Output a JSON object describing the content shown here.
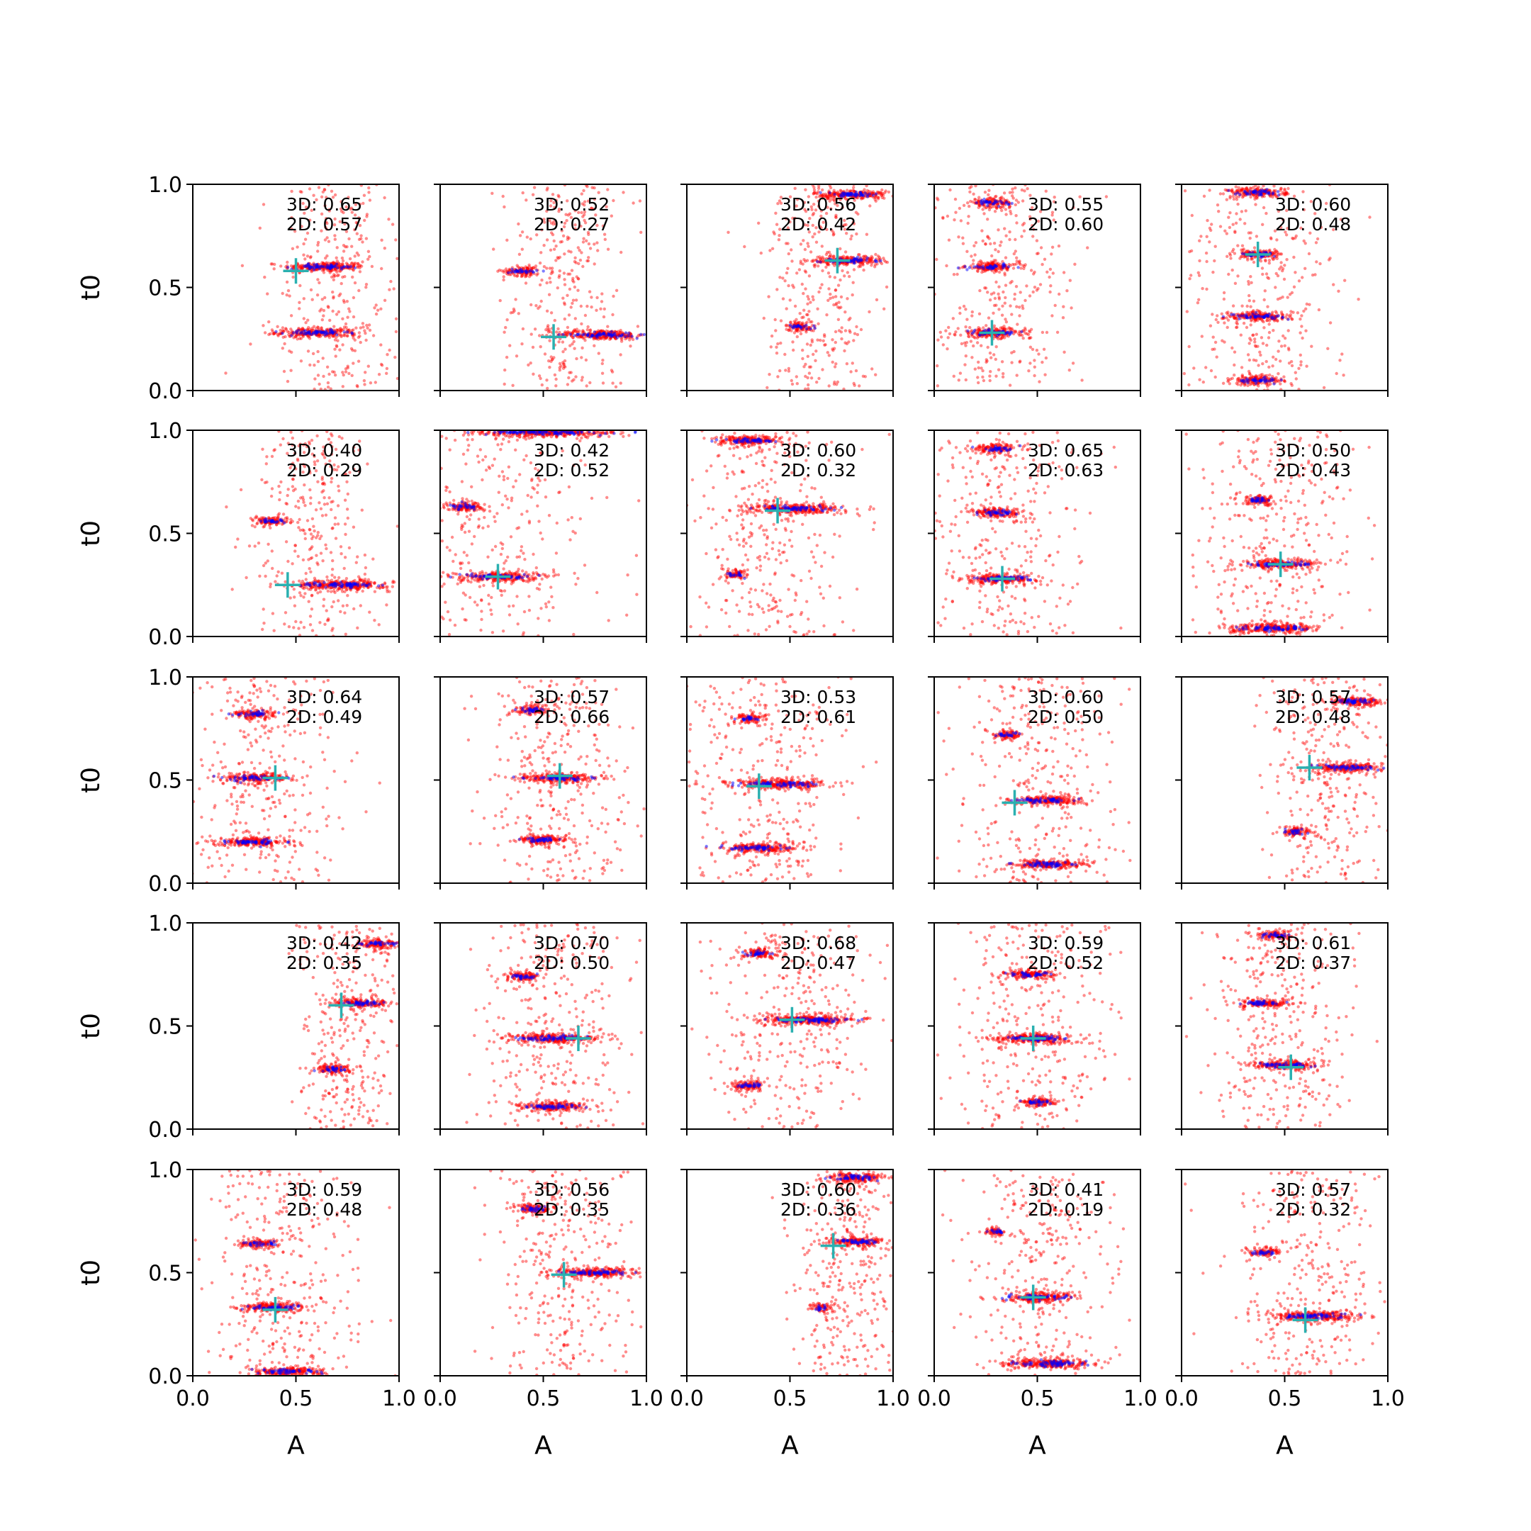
{
  "figure": {
    "rows": 5,
    "cols": 5,
    "xlabel": "A",
    "ylabel": "t0",
    "xlim": [
      0,
      1
    ],
    "ylim": [
      0,
      1
    ],
    "xticks": [
      "0.0",
      "0.5",
      "1.0"
    ],
    "yticks": [
      "0.0",
      "0.5",
      "1.0"
    ]
  },
  "colors": {
    "three_d_points": "#ff0000",
    "two_d_points": "#0000ff",
    "marker": "#2ab0b0"
  },
  "chart_data": {
    "type": "scatter",
    "marker_style": "plus",
    "panels": [
      {
        "label_3d": "3D: 0.65",
        "label_2d": "2D: 0.57",
        "marker": [
          0.5,
          0.58
        ],
        "modes": [
          {
            "a": 0.64,
            "t": 0.6,
            "w": 0.22
          },
          {
            "a": 0.6,
            "t": 0.28,
            "w": 0.22
          }
        ],
        "spread": {
          "a": 0.7,
          "w": 0.14
        }
      },
      {
        "label_3d": "3D: 0.52",
        "label_2d": "2D: 0.27",
        "marker": [
          0.55,
          0.26
        ],
        "modes": [
          {
            "a": 0.78,
            "t": 0.27,
            "w": 0.24
          },
          {
            "a": 0.4,
            "t": 0.58,
            "w": 0.1
          }
        ],
        "spread": {
          "a": 0.6,
          "w": 0.14
        }
      },
      {
        "label_3d": "3D: 0.56",
        "label_2d": "2D: 0.42",
        "marker": [
          0.73,
          0.63
        ],
        "modes": [
          {
            "a": 0.78,
            "t": 0.63,
            "w": 0.2
          },
          {
            "a": 0.8,
            "t": 0.95,
            "w": 0.2
          },
          {
            "a": 0.55,
            "t": 0.31,
            "w": 0.08
          }
        ],
        "spread": {
          "a": 0.65,
          "w": 0.14
        }
      },
      {
        "label_3d": "3D: 0.55",
        "label_2d": "2D: 0.60",
        "marker": [
          0.28,
          0.28
        ],
        "modes": [
          {
            "a": 0.28,
            "t": 0.28,
            "w": 0.18
          },
          {
            "a": 0.28,
            "t": 0.6,
            "w": 0.14
          },
          {
            "a": 0.28,
            "t": 0.91,
            "w": 0.12
          }
        ],
        "spread": {
          "a": 0.3,
          "w": 0.18
        }
      },
      {
        "label_3d": "3D: 0.60",
        "label_2d": "2D: 0.48",
        "marker": [
          0.37,
          0.66
        ],
        "modes": [
          {
            "a": 0.37,
            "t": 0.66,
            "w": 0.12
          },
          {
            "a": 0.37,
            "t": 0.36,
            "w": 0.18
          },
          {
            "a": 0.37,
            "t": 0.96,
            "w": 0.16
          },
          {
            "a": 0.37,
            "t": 0.05,
            "w": 0.14
          }
        ],
        "spread": {
          "a": 0.37,
          "w": 0.2
        }
      },
      {
        "label_3d": "3D: 0.40",
        "label_2d": "2D: 0.29",
        "marker": [
          0.46,
          0.25
        ],
        "modes": [
          {
            "a": 0.72,
            "t": 0.25,
            "w": 0.26
          },
          {
            "a": 0.38,
            "t": 0.56,
            "w": 0.1
          }
        ],
        "spread": {
          "a": 0.6,
          "w": 0.14
        }
      },
      {
        "label_3d": "3D: 0.42",
        "label_2d": "2D: 0.52",
        "marker": [
          0.28,
          0.29
        ],
        "modes": [
          {
            "a": 0.28,
            "t": 0.29,
            "w": 0.22
          },
          {
            "a": 0.12,
            "t": 0.63,
            "w": 0.1
          },
          {
            "a": 0.5,
            "t": 0.99,
            "w": 0.4
          }
        ],
        "spread": {
          "a": 0.25,
          "w": 0.28
        }
      },
      {
        "label_3d": "3D: 0.60",
        "label_2d": "2D: 0.32",
        "marker": [
          0.44,
          0.61
        ],
        "modes": [
          {
            "a": 0.52,
            "t": 0.62,
            "w": 0.26
          },
          {
            "a": 0.3,
            "t": 0.95,
            "w": 0.18
          },
          {
            "a": 0.24,
            "t": 0.3,
            "w": 0.06
          }
        ],
        "spread": {
          "a": 0.4,
          "w": 0.18
        }
      },
      {
        "label_3d": "3D: 0.65",
        "label_2d": "2D: 0.63",
        "marker": [
          0.33,
          0.28
        ],
        "modes": [
          {
            "a": 0.33,
            "t": 0.28,
            "w": 0.2
          },
          {
            "a": 0.3,
            "t": 0.6,
            "w": 0.14
          },
          {
            "a": 0.3,
            "t": 0.91,
            "w": 0.12
          }
        ],
        "spread": {
          "a": 0.33,
          "w": 0.2
        }
      },
      {
        "label_3d": "3D: 0.50",
        "label_2d": "2D: 0.43",
        "marker": [
          0.48,
          0.35
        ],
        "modes": [
          {
            "a": 0.48,
            "t": 0.35,
            "w": 0.2
          },
          {
            "a": 0.38,
            "t": 0.66,
            "w": 0.1
          },
          {
            "a": 0.45,
            "t": 0.04,
            "w": 0.24
          }
        ],
        "spread": {
          "a": 0.45,
          "w": 0.2
        }
      },
      {
        "label_3d": "3D: 0.64",
        "label_2d": "2D: 0.49",
        "marker": [
          0.4,
          0.51
        ],
        "modes": [
          {
            "a": 0.3,
            "t": 0.51,
            "w": 0.18
          },
          {
            "a": 0.3,
            "t": 0.2,
            "w": 0.2
          },
          {
            "a": 0.3,
            "t": 0.82,
            "w": 0.12
          }
        ],
        "spread": {
          "a": 0.32,
          "w": 0.2
        }
      },
      {
        "label_3d": "3D: 0.57",
        "label_2d": "2D: 0.66",
        "marker": [
          0.58,
          0.52
        ],
        "modes": [
          {
            "a": 0.58,
            "t": 0.51,
            "w": 0.22
          },
          {
            "a": 0.5,
            "t": 0.21,
            "w": 0.14
          },
          {
            "a": 0.45,
            "t": 0.84,
            "w": 0.1
          }
        ],
        "spread": {
          "a": 0.55,
          "w": 0.18
        }
      },
      {
        "label_3d": "3D: 0.53",
        "label_2d": "2D: 0.61",
        "marker": [
          0.35,
          0.47
        ],
        "modes": [
          {
            "a": 0.45,
            "t": 0.48,
            "w": 0.26
          },
          {
            "a": 0.35,
            "t": 0.17,
            "w": 0.2
          },
          {
            "a": 0.3,
            "t": 0.8,
            "w": 0.08
          }
        ],
        "spread": {
          "a": 0.4,
          "w": 0.2
        }
      },
      {
        "label_3d": "3D: 0.60",
        "label_2d": "2D: 0.50",
        "marker": [
          0.39,
          0.39
        ],
        "modes": [
          {
            "a": 0.55,
            "t": 0.4,
            "w": 0.2
          },
          {
            "a": 0.55,
            "t": 0.09,
            "w": 0.2
          },
          {
            "a": 0.35,
            "t": 0.72,
            "w": 0.08
          }
        ],
        "spread": {
          "a": 0.5,
          "w": 0.2
        }
      },
      {
        "label_3d": "3D: 0.57",
        "label_2d": "2D: 0.48",
        "marker": [
          0.62,
          0.56
        ],
        "modes": [
          {
            "a": 0.8,
            "t": 0.56,
            "w": 0.2
          },
          {
            "a": 0.85,
            "t": 0.88,
            "w": 0.15
          },
          {
            "a": 0.55,
            "t": 0.25,
            "w": 0.08
          }
        ],
        "spread": {
          "a": 0.7,
          "w": 0.14
        }
      },
      {
        "label_3d": "3D: 0.42",
        "label_2d": "2D: 0.35",
        "marker": [
          0.72,
          0.6
        ],
        "modes": [
          {
            "a": 0.82,
            "t": 0.61,
            "w": 0.16
          },
          {
            "a": 0.9,
            "t": 0.9,
            "w": 0.12
          },
          {
            "a": 0.68,
            "t": 0.29,
            "w": 0.1
          }
        ],
        "spread": {
          "a": 0.75,
          "w": 0.12
        }
      },
      {
        "label_3d": "3D: 0.70",
        "label_2d": "2D: 0.50",
        "marker": [
          0.67,
          0.44
        ],
        "modes": [
          {
            "a": 0.55,
            "t": 0.44,
            "w": 0.24
          },
          {
            "a": 0.4,
            "t": 0.74,
            "w": 0.1
          },
          {
            "a": 0.55,
            "t": 0.11,
            "w": 0.18
          }
        ],
        "spread": {
          "a": 0.55,
          "w": 0.18
        }
      },
      {
        "label_3d": "3D: 0.68",
        "label_2d": "2D: 0.47",
        "marker": [
          0.51,
          0.53
        ],
        "modes": [
          {
            "a": 0.6,
            "t": 0.53,
            "w": 0.28
          },
          {
            "a": 0.3,
            "t": 0.21,
            "w": 0.1
          },
          {
            "a": 0.35,
            "t": 0.85,
            "w": 0.1
          }
        ],
        "spread": {
          "a": 0.5,
          "w": 0.2
        }
      },
      {
        "label_3d": "3D: 0.59",
        "label_2d": "2D: 0.52",
        "marker": [
          0.48,
          0.44
        ],
        "modes": [
          {
            "a": 0.48,
            "t": 0.44,
            "w": 0.22
          },
          {
            "a": 0.45,
            "t": 0.75,
            "w": 0.14
          },
          {
            "a": 0.5,
            "t": 0.13,
            "w": 0.1
          }
        ],
        "spread": {
          "a": 0.48,
          "w": 0.2
        }
      },
      {
        "label_3d": "3D: 0.61",
        "label_2d": "2D: 0.37",
        "marker": [
          0.53,
          0.3
        ],
        "modes": [
          {
            "a": 0.5,
            "t": 0.31,
            "w": 0.18
          },
          {
            "a": 0.4,
            "t": 0.61,
            "w": 0.14
          },
          {
            "a": 0.45,
            "t": 0.94,
            "w": 0.1
          }
        ],
        "spread": {
          "a": 0.48,
          "w": 0.18
        }
      },
      {
        "label_3d": "3D: 0.59",
        "label_2d": "2D: 0.48",
        "marker": [
          0.4,
          0.32
        ],
        "modes": [
          {
            "a": 0.38,
            "t": 0.33,
            "w": 0.18
          },
          {
            "a": 0.32,
            "t": 0.64,
            "w": 0.1
          },
          {
            "a": 0.45,
            "t": 0.02,
            "w": 0.2
          }
        ],
        "spread": {
          "a": 0.42,
          "w": 0.18
        }
      },
      {
        "label_3d": "3D: 0.56",
        "label_2d": "2D: 0.35",
        "marker": [
          0.6,
          0.49
        ],
        "modes": [
          {
            "a": 0.75,
            "t": 0.5,
            "w": 0.24
          },
          {
            "a": 0.45,
            "t": 0.81,
            "w": 0.1
          }
        ],
        "spread": {
          "a": 0.6,
          "w": 0.16
        }
      },
      {
        "label_3d": "3D: 0.60",
        "label_2d": "2D: 0.36",
        "marker": [
          0.71,
          0.63
        ],
        "modes": [
          {
            "a": 0.82,
            "t": 0.65,
            "w": 0.16
          },
          {
            "a": 0.82,
            "t": 0.96,
            "w": 0.16
          },
          {
            "a": 0.65,
            "t": 0.33,
            "w": 0.05
          }
        ],
        "spread": {
          "a": 0.78,
          "w": 0.12
        }
      },
      {
        "label_3d": "3D: 0.41",
        "label_2d": "2D: 0.19",
        "marker": [
          0.48,
          0.38
        ],
        "modes": [
          {
            "a": 0.5,
            "t": 0.38,
            "w": 0.2
          },
          {
            "a": 0.55,
            "t": 0.06,
            "w": 0.24
          },
          {
            "a": 0.3,
            "t": 0.7,
            "w": 0.06
          }
        ],
        "spread": {
          "a": 0.5,
          "w": 0.18
        }
      },
      {
        "label_3d": "3D: 0.57",
        "label_2d": "2D: 0.32",
        "marker": [
          0.6,
          0.27
        ],
        "modes": [
          {
            "a": 0.65,
            "t": 0.29,
            "w": 0.24
          },
          {
            "a": 0.4,
            "t": 0.6,
            "w": 0.08
          }
        ],
        "spread": {
          "a": 0.6,
          "w": 0.18
        }
      }
    ]
  }
}
